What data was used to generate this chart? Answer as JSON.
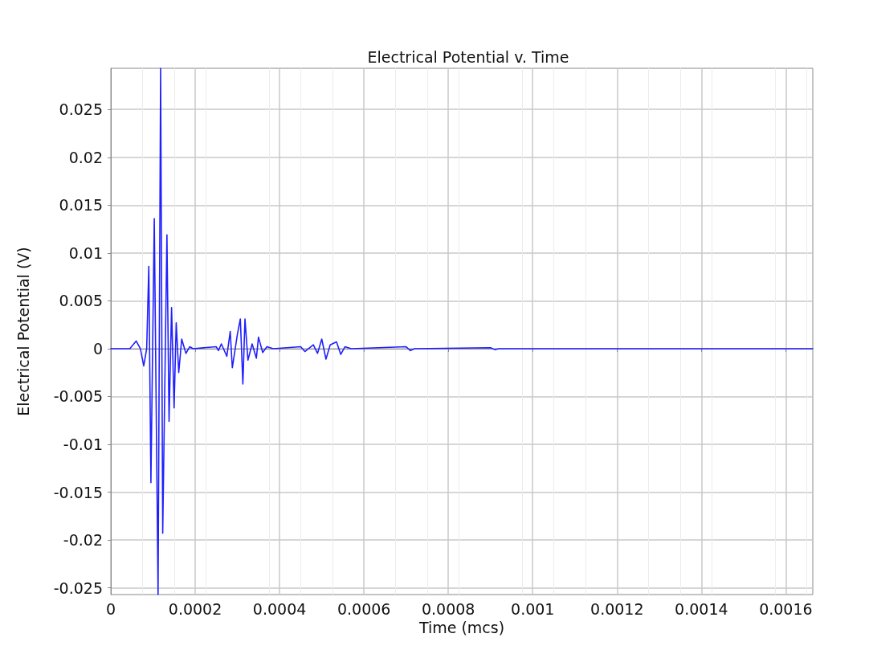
{
  "chart_data": {
    "type": "line",
    "title": "Electrical Potential v. Time",
    "xlabel": "Time (mcs)",
    "ylabel": "Electrical Potential (V)",
    "xlim": [
      0,
      0.001664
    ],
    "xticks": [
      0,
      0.0002,
      0.0004,
      0.0006,
      0.0008,
      0.001,
      0.0012,
      0.0014,
      0.0016
    ],
    "ylim": [
      -0.0257,
      0.0293
    ],
    "yticks": [
      -0.025,
      -0.02,
      -0.015,
      -0.01,
      -0.005,
      0,
      0.005,
      0.01,
      0.015,
      0.02,
      0.025
    ],
    "grid": true,
    "marker": "none",
    "line_style": "solid",
    "series": [
      {
        "color": "#1f1fff",
        "x": [
          0,
          4.5e-05,
          6e-05,
          7e-05,
          7.8e-05,
          8.5e-05,
          9e-05,
          9.5e-05,
          0.000103,
          0.000112,
          0.000118,
          0.000123,
          0.000133,
          0.000138,
          0.000144,
          0.00015,
          0.000155,
          0.000161,
          0.000168,
          0.000178,
          0.000187,
          0.000195,
          0.00025,
          0.000255,
          0.000262,
          0.000275,
          0.000283,
          0.000288,
          0.0003,
          0.000307,
          0.000313,
          0.000318,
          0.000325,
          0.000335,
          0.000345,
          0.00035,
          0.00036,
          0.00037,
          0.000385,
          0.00045,
          0.00046,
          0.00048,
          0.00049,
          0.0005,
          0.00051,
          0.00052,
          0.000535,
          0.000545,
          0.000555,
          0.00057,
          0.0007,
          0.00071,
          0.00072,
          0.0009,
          0.00091,
          0.00092,
          0.001664
        ],
        "values": [
          0,
          0,
          0.0008,
          0,
          -0.0018,
          0,
          0.0086,
          -0.014,
          0.0136,
          -0.0257,
          0.0293,
          -0.0193,
          0.0119,
          -0.0076,
          0.0043,
          -0.0062,
          0.0027,
          -0.0025,
          0.001,
          -0.0005,
          0.0002,
          0,
          0.0002,
          -0.0002,
          0.0005,
          -0.0008,
          0.0018,
          -0.002,
          0.0015,
          0.0031,
          -0.0037,
          0.0031,
          -0.0012,
          0.0005,
          -0.001,
          0.0012,
          -0.0004,
          0.0002,
          0,
          0.0002,
          -0.0003,
          0.0004,
          -0.0005,
          0.001,
          -0.0011,
          0.0004,
          0.0007,
          -0.0006,
          0.0002,
          0,
          0.0002,
          -0.0002,
          0,
          0.0001,
          -0.0001,
          0,
          0
        ]
      }
    ]
  }
}
